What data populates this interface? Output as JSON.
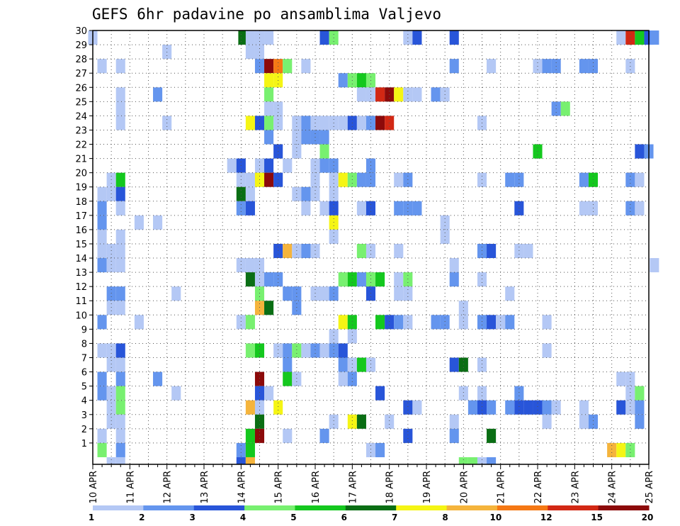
{
  "chart_data": {
    "type": "heatmap",
    "title": "GEFS 6hr padavine po ansamblima Valjevo",
    "x_tick_labels": [
      "10 APR",
      "11 APR",
      "12 APR",
      "13 APR",
      "14 APR",
      "15 APR",
      "16 APR",
      "17 APR",
      "18 APR",
      "19 APR",
      "20 APR",
      "21 APR",
      "22 APR",
      "23 APR",
      "24 APR",
      "25 APR"
    ],
    "y_tick_labels": [
      "1",
      "2",
      "3",
      "4",
      "5",
      "6",
      "7",
      "8",
      "9",
      "10",
      "11",
      "12",
      "13",
      "14",
      "15",
      "16",
      "17",
      "18",
      "19",
      "20",
      "21",
      "22",
      "23",
      "24",
      "25",
      "26",
      "27",
      "28",
      "29",
      "30"
    ],
    "x_range_days": [
      10,
      25
    ],
    "y_range_members": [
      0,
      30
    ],
    "grid": "dotted",
    "colorbar": {
      "placement": "bottom",
      "labels": [
        "1",
        "2",
        "3",
        "4",
        "5",
        "6",
        "7",
        "8",
        "10",
        "12",
        "15",
        "20"
      ],
      "colors": [
        "#b4c8f5",
        "#6495ee",
        "#2855d9",
        "#78f070",
        "#14c81e",
        "#0a6e14",
        "#f5f514",
        "#f5b43c",
        "#f57814",
        "#d22814",
        "#8c0a0a"
      ]
    },
    "cell_width_days": 0.25,
    "cells": [
      [
        10.0,
        30,
        0
      ],
      [
        14.05,
        30,
        5
      ],
      [
        14.25,
        30,
        0
      ],
      [
        14.5,
        30,
        0
      ],
      [
        14.75,
        30,
        0
      ],
      [
        16.25,
        30,
        2
      ],
      [
        16.5,
        30,
        3
      ],
      [
        18.5,
        30,
        0
      ],
      [
        18.75,
        30,
        2
      ],
      [
        19.75,
        30,
        2
      ],
      [
        24.25,
        30,
        0
      ],
      [
        24.5,
        30,
        9
      ],
      [
        24.75,
        30,
        4
      ],
      [
        25.0,
        30,
        2
      ],
      [
        25.15,
        30,
        1
      ],
      [
        14.25,
        29,
        0
      ],
      [
        14.5,
        29,
        0
      ],
      [
        12.0,
        29,
        0
      ],
      [
        10.25,
        28,
        0
      ],
      [
        10.75,
        28,
        0
      ],
      [
        14.5,
        28,
        1
      ],
      [
        14.75,
        28,
        10
      ],
      [
        15.0,
        28,
        8
      ],
      [
        15.25,
        28,
        3
      ],
      [
        15.75,
        28,
        0
      ],
      [
        19.75,
        28,
        1
      ],
      [
        20.75,
        28,
        0
      ],
      [
        22.0,
        28,
        0
      ],
      [
        22.25,
        28,
        1
      ],
      [
        22.5,
        28,
        1
      ],
      [
        23.25,
        28,
        1
      ],
      [
        23.5,
        28,
        1
      ],
      [
        24.5,
        28,
        0
      ],
      [
        14.75,
        27,
        6
      ],
      [
        15.0,
        27,
        6
      ],
      [
        16.75,
        27,
        1
      ],
      [
        17.0,
        27,
        3
      ],
      [
        17.25,
        27,
        4
      ],
      [
        17.5,
        27,
        3
      ],
      [
        10.75,
        26,
        0
      ],
      [
        11.75,
        26,
        1
      ],
      [
        14.75,
        26,
        3
      ],
      [
        17.25,
        26,
        0
      ],
      [
        17.5,
        26,
        0
      ],
      [
        17.75,
        26,
        9
      ],
      [
        18.0,
        26,
        10
      ],
      [
        18.25,
        26,
        6
      ],
      [
        18.5,
        26,
        0
      ],
      [
        18.75,
        26,
        0
      ],
      [
        19.25,
        26,
        1
      ],
      [
        19.5,
        26,
        0
      ],
      [
        10.75,
        25,
        0
      ],
      [
        14.75,
        25,
        0
      ],
      [
        15.0,
        25,
        0
      ],
      [
        22.5,
        25,
        1
      ],
      [
        22.75,
        25,
        3
      ],
      [
        10.75,
        24,
        0
      ],
      [
        12.0,
        24,
        0
      ],
      [
        14.25,
        24,
        6
      ],
      [
        14.5,
        24,
        2
      ],
      [
        14.75,
        24,
        3
      ],
      [
        15.0,
        24,
        0
      ],
      [
        15.5,
        24,
        0
      ],
      [
        15.75,
        24,
        1
      ],
      [
        16.0,
        24,
        0
      ],
      [
        16.25,
        24,
        0
      ],
      [
        16.5,
        24,
        0
      ],
      [
        16.75,
        24,
        0
      ],
      [
        17.0,
        24,
        2
      ],
      [
        17.25,
        24,
        0
      ],
      [
        17.5,
        24,
        1
      ],
      [
        17.75,
        24,
        10
      ],
      [
        18.0,
        24,
        9
      ],
      [
        20.5,
        24,
        0
      ],
      [
        14.75,
        23,
        1
      ],
      [
        15.5,
        23,
        0
      ],
      [
        15.75,
        23,
        1
      ],
      [
        16.0,
        23,
        1
      ],
      [
        16.25,
        23,
        1
      ],
      [
        15.0,
        22,
        2
      ],
      [
        15.5,
        22,
        0
      ],
      [
        16.25,
        22,
        3
      ],
      [
        22.0,
        22,
        4
      ],
      [
        24.75,
        22,
        2
      ],
      [
        25.0,
        22,
        1
      ],
      [
        13.75,
        21,
        0
      ],
      [
        14.0,
        21,
        2
      ],
      [
        14.5,
        21,
        0
      ],
      [
        14.75,
        21,
        2
      ],
      [
        15.25,
        21,
        0
      ],
      [
        16.0,
        21,
        0
      ],
      [
        16.25,
        21,
        1
      ],
      [
        16.5,
        21,
        1
      ],
      [
        17.5,
        21,
        1
      ],
      [
        10.5,
        20,
        0
      ],
      [
        10.75,
        20,
        4
      ],
      [
        14.0,
        20,
        0
      ],
      [
        14.25,
        20,
        0
      ],
      [
        14.5,
        20,
        6
      ],
      [
        14.75,
        20,
        10
      ],
      [
        15.0,
        20,
        2
      ],
      [
        16.0,
        20,
        0
      ],
      [
        16.5,
        20,
        0
      ],
      [
        16.75,
        20,
        6
      ],
      [
        17.0,
        20,
        3
      ],
      [
        17.25,
        20,
        1
      ],
      [
        17.5,
        20,
        1
      ],
      [
        18.25,
        20,
        0
      ],
      [
        18.5,
        20,
        1
      ],
      [
        20.5,
        20,
        0
      ],
      [
        21.25,
        20,
        1
      ],
      [
        21.5,
        20,
        1
      ],
      [
        23.25,
        20,
        1
      ],
      [
        23.5,
        20,
        4
      ],
      [
        24.5,
        20,
        1
      ],
      [
        24.75,
        20,
        0
      ],
      [
        10.25,
        19,
        0
      ],
      [
        10.5,
        19,
        0
      ],
      [
        10.75,
        19,
        2
      ],
      [
        14.0,
        19,
        5
      ],
      [
        14.25,
        19,
        0
      ],
      [
        15.5,
        19,
        0
      ],
      [
        15.75,
        19,
        1
      ],
      [
        16.0,
        19,
        0
      ],
      [
        16.5,
        19,
        0
      ],
      [
        10.25,
        18,
        1
      ],
      [
        10.75,
        18,
        0
      ],
      [
        14.0,
        18,
        1
      ],
      [
        14.25,
        18,
        2
      ],
      [
        15.75,
        18,
        0
      ],
      [
        16.25,
        18,
        0
      ],
      [
        16.5,
        18,
        2
      ],
      [
        17.25,
        18,
        0
      ],
      [
        17.5,
        18,
        2
      ],
      [
        18.25,
        18,
        1
      ],
      [
        18.5,
        18,
        1
      ],
      [
        18.75,
        18,
        1
      ],
      [
        21.5,
        18,
        2
      ],
      [
        23.25,
        18,
        0
      ],
      [
        23.5,
        18,
        0
      ],
      [
        24.5,
        18,
        1
      ],
      [
        24.75,
        18,
        0
      ],
      [
        10.25,
        17,
        1
      ],
      [
        11.25,
        17,
        0
      ],
      [
        11.75,
        17,
        0
      ],
      [
        16.5,
        17,
        6
      ],
      [
        19.5,
        17,
        0
      ],
      [
        10.25,
        16,
        0
      ],
      [
        10.75,
        16,
        0
      ],
      [
        16.5,
        16,
        0
      ],
      [
        19.5,
        16,
        0
      ],
      [
        10.25,
        15,
        0
      ],
      [
        10.5,
        15,
        0
      ],
      [
        10.75,
        15,
        0
      ],
      [
        15.0,
        15,
        2
      ],
      [
        15.25,
        15,
        7
      ],
      [
        15.5,
        15,
        0
      ],
      [
        15.75,
        15,
        1
      ],
      [
        16.0,
        15,
        0
      ],
      [
        17.25,
        15,
        3
      ],
      [
        17.5,
        15,
        0
      ],
      [
        18.25,
        15,
        0
      ],
      [
        20.5,
        15,
        1
      ],
      [
        20.75,
        15,
        2
      ],
      [
        21.5,
        15,
        0
      ],
      [
        21.75,
        15,
        0
      ],
      [
        10.25,
        14,
        1
      ],
      [
        10.5,
        14,
        0
      ],
      [
        10.75,
        14,
        0
      ],
      [
        14.0,
        14,
        0
      ],
      [
        14.25,
        14,
        0
      ],
      [
        14.5,
        14,
        0
      ],
      [
        19.75,
        14,
        0
      ],
      [
        25.15,
        14,
        0
      ],
      [
        14.25,
        13,
        5
      ],
      [
        14.5,
        13,
        0
      ],
      [
        14.75,
        13,
        1
      ],
      [
        15.0,
        13,
        1
      ],
      [
        16.75,
        13,
        3
      ],
      [
        17.0,
        13,
        4
      ],
      [
        17.25,
        13,
        1
      ],
      [
        17.5,
        13,
        3
      ],
      [
        17.75,
        13,
        4
      ],
      [
        18.25,
        13,
        0
      ],
      [
        18.5,
        13,
        3
      ],
      [
        19.75,
        13,
        1
      ],
      [
        20.5,
        13,
        0
      ],
      [
        10.5,
        12,
        1
      ],
      [
        10.75,
        12,
        1
      ],
      [
        12.25,
        12,
        0
      ],
      [
        14.5,
        12,
        3
      ],
      [
        15.25,
        12,
        1
      ],
      [
        15.5,
        12,
        1
      ],
      [
        16.0,
        12,
        0
      ],
      [
        16.25,
        12,
        0
      ],
      [
        16.5,
        12,
        1
      ],
      [
        17.5,
        12,
        2
      ],
      [
        18.25,
        12,
        0
      ],
      [
        18.5,
        12,
        0
      ],
      [
        21.25,
        12,
        0
      ],
      [
        10.5,
        11,
        0
      ],
      [
        10.75,
        11,
        0
      ],
      [
        14.5,
        11,
        7
      ],
      [
        14.75,
        11,
        5
      ],
      [
        15.5,
        11,
        1
      ],
      [
        20.0,
        11,
        0
      ],
      [
        10.25,
        10,
        1
      ],
      [
        11.25,
        10,
        0
      ],
      [
        14.0,
        10,
        0
      ],
      [
        14.25,
        10,
        3
      ],
      [
        16.75,
        10,
        6
      ],
      [
        17.0,
        10,
        4
      ],
      [
        17.75,
        10,
        4
      ],
      [
        18.0,
        10,
        2
      ],
      [
        18.25,
        10,
        1
      ],
      [
        18.5,
        10,
        0
      ],
      [
        19.25,
        10,
        1
      ],
      [
        19.5,
        10,
        1
      ],
      [
        20.0,
        10,
        0
      ],
      [
        20.5,
        10,
        1
      ],
      [
        20.75,
        10,
        2
      ],
      [
        21.0,
        10,
        0
      ],
      [
        21.25,
        10,
        1
      ],
      [
        22.25,
        10,
        0
      ],
      [
        16.5,
        9,
        0
      ],
      [
        17.0,
        9,
        0
      ],
      [
        10.25,
        8,
        0
      ],
      [
        10.5,
        8,
        0
      ],
      [
        10.75,
        8,
        2
      ],
      [
        14.25,
        8,
        3
      ],
      [
        14.5,
        8,
        4
      ],
      [
        15.0,
        8,
        0
      ],
      [
        15.25,
        8,
        1
      ],
      [
        15.5,
        8,
        3
      ],
      [
        15.75,
        8,
        0
      ],
      [
        16.0,
        8,
        1
      ],
      [
        16.25,
        8,
        0
      ],
      [
        16.5,
        8,
        1
      ],
      [
        16.75,
        8,
        2
      ],
      [
        22.25,
        8,
        0
      ],
      [
        10.5,
        7,
        0
      ],
      [
        10.75,
        7,
        0
      ],
      [
        15.25,
        7,
        1
      ],
      [
        16.75,
        7,
        1
      ],
      [
        17.0,
        7,
        0
      ],
      [
        17.25,
        7,
        4
      ],
      [
        17.5,
        7,
        0
      ],
      [
        19.75,
        7,
        2
      ],
      [
        20.0,
        7,
        5
      ],
      [
        20.5,
        7,
        0
      ],
      [
        10.25,
        6,
        1
      ],
      [
        10.75,
        6,
        1
      ],
      [
        11.75,
        6,
        1
      ],
      [
        14.5,
        6,
        10
      ],
      [
        15.25,
        6,
        4
      ],
      [
        15.5,
        6,
        0
      ],
      [
        16.75,
        6,
        0
      ],
      [
        17.0,
        6,
        1
      ],
      [
        24.25,
        6,
        0
      ],
      [
        24.5,
        6,
        0
      ],
      [
        10.25,
        5,
        1
      ],
      [
        10.5,
        5,
        0
      ],
      [
        10.75,
        5,
        3
      ],
      [
        12.25,
        5,
        0
      ],
      [
        14.5,
        5,
        2
      ],
      [
        14.75,
        5,
        0
      ],
      [
        17.75,
        5,
        2
      ],
      [
        20.0,
        5,
        0
      ],
      [
        20.5,
        5,
        0
      ],
      [
        21.5,
        5,
        1
      ],
      [
        24.5,
        5,
        0
      ],
      [
        24.75,
        5,
        3
      ],
      [
        10.5,
        4,
        0
      ],
      [
        10.75,
        4,
        3
      ],
      [
        14.25,
        4,
        7
      ],
      [
        14.5,
        4,
        0
      ],
      [
        15.0,
        4,
        6
      ],
      [
        18.5,
        4,
        2
      ],
      [
        18.75,
        4,
        0
      ],
      [
        20.25,
        4,
        1
      ],
      [
        20.5,
        4,
        2
      ],
      [
        20.75,
        4,
        1
      ],
      [
        21.25,
        4,
        1
      ],
      [
        21.5,
        4,
        2
      ],
      [
        21.75,
        4,
        2
      ],
      [
        22.0,
        4,
        2
      ],
      [
        22.25,
        4,
        1
      ],
      [
        22.5,
        4,
        0
      ],
      [
        23.25,
        4,
        0
      ],
      [
        24.25,
        4,
        2
      ],
      [
        24.5,
        4,
        0
      ],
      [
        24.75,
        4,
        1
      ],
      [
        10.5,
        3,
        0
      ],
      [
        10.75,
        3,
        0
      ],
      [
        14.5,
        3,
        5
      ],
      [
        16.5,
        3,
        0
      ],
      [
        17.0,
        3,
        6
      ],
      [
        17.25,
        3,
        5
      ],
      [
        18.0,
        3,
        0
      ],
      [
        19.75,
        3,
        0
      ],
      [
        22.25,
        3,
        0
      ],
      [
        23.25,
        3,
        0
      ],
      [
        23.5,
        3,
        1
      ],
      [
        24.75,
        3,
        1
      ],
      [
        10.25,
        2,
        0
      ],
      [
        10.75,
        2,
        0
      ],
      [
        14.25,
        2,
        4
      ],
      [
        14.5,
        2,
        10
      ],
      [
        15.25,
        2,
        0
      ],
      [
        16.25,
        2,
        1
      ],
      [
        18.5,
        2,
        2
      ],
      [
        19.75,
        2,
        1
      ],
      [
        20.75,
        2,
        5
      ],
      [
        10.25,
        1,
        3
      ],
      [
        10.75,
        1,
        1
      ],
      [
        14.0,
        1,
        1
      ],
      [
        14.25,
        1,
        4
      ],
      [
        17.5,
        1,
        0
      ],
      [
        17.75,
        1,
        1
      ],
      [
        24.0,
        1,
        7
      ],
      [
        24.25,
        1,
        6
      ],
      [
        24.5,
        1,
        3
      ],
      [
        10.5,
        0,
        0
      ],
      [
        10.75,
        0,
        0
      ],
      [
        14.0,
        0,
        2
      ],
      [
        14.25,
        0,
        7
      ],
      [
        20.0,
        0,
        3
      ],
      [
        20.25,
        0,
        3
      ],
      [
        20.5,
        0,
        0
      ],
      [
        20.75,
        0,
        1
      ]
    ]
  }
}
